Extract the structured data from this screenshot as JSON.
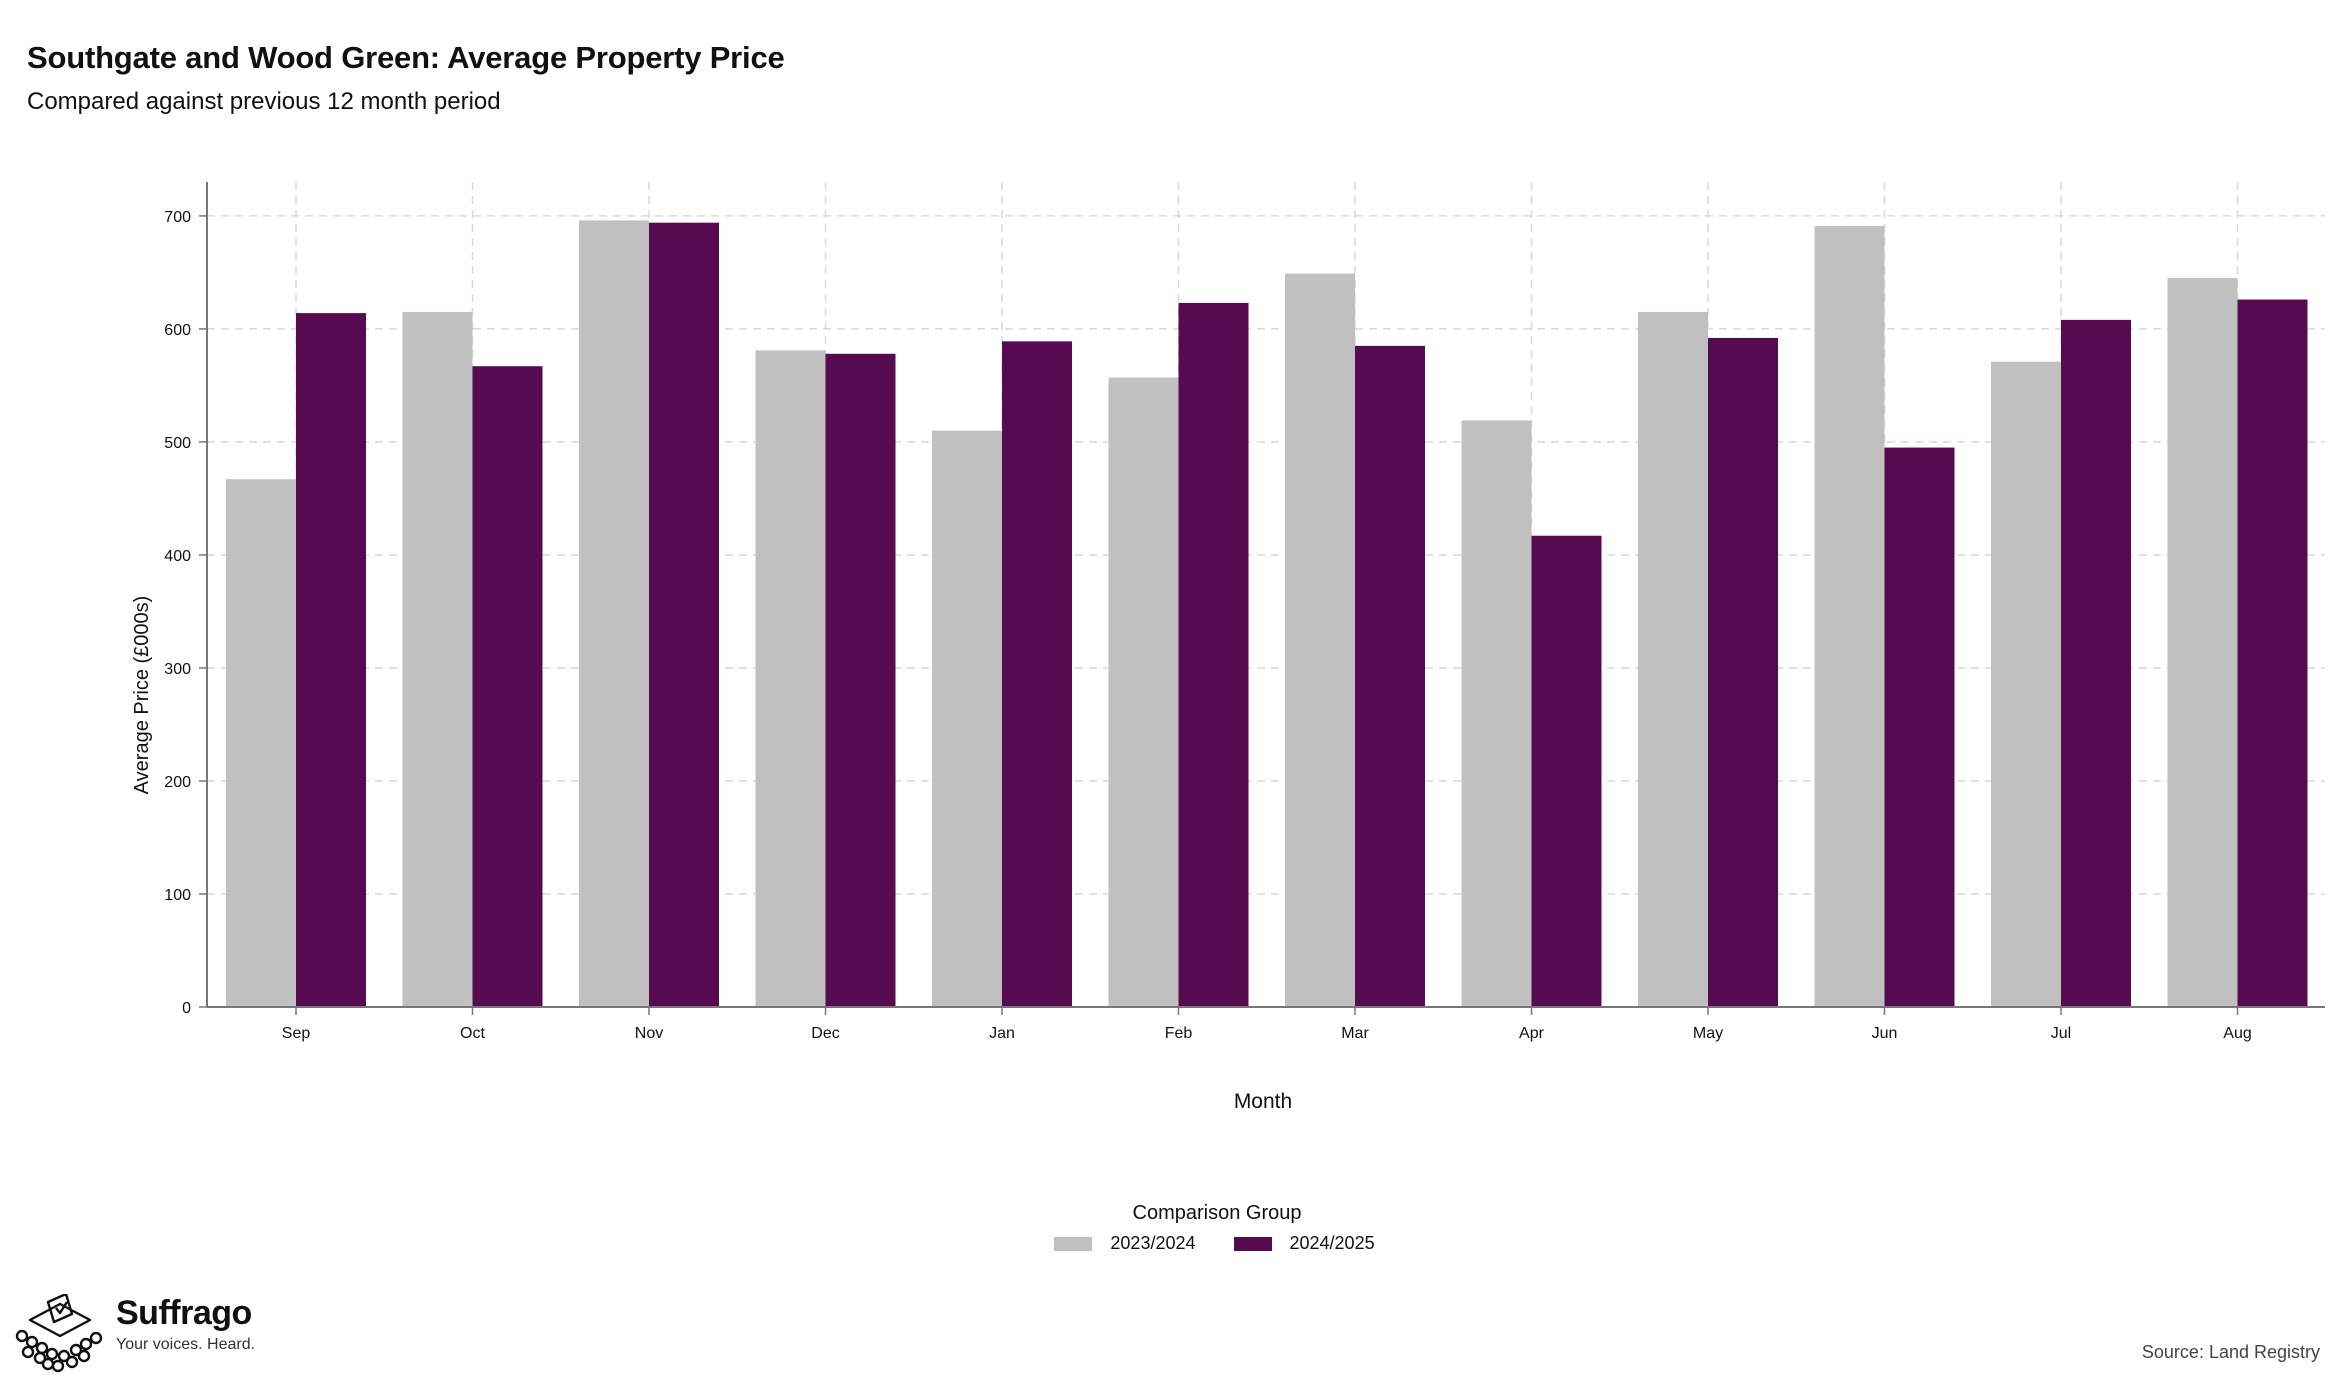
{
  "title": "Southgate and Wood Green: Average Property Price",
  "subtitle": "Compared against previous 12 month period",
  "colors": {
    "series_2023_2024": "#c0c0c0",
    "series_2024_2025": "#560b50",
    "axis": "#777777",
    "grid": "#d9d9d9"
  },
  "chart_data": {
    "type": "bar",
    "categories": [
      "Sep",
      "Oct",
      "Nov",
      "Dec",
      "Jan",
      "Feb",
      "Mar",
      "Apr",
      "May",
      "Jun",
      "Jul",
      "Aug"
    ],
    "series": [
      {
        "name": "2023/2024",
        "values": [
          467,
          615,
          696,
          581,
          510,
          557,
          649,
          519,
          615,
          691,
          571,
          645
        ]
      },
      {
        "name": "2024/2025",
        "values": [
          614,
          567,
          694,
          578,
          589,
          623,
          585,
          417,
          592,
          495,
          608,
          626
        ]
      }
    ],
    "xlabel": "Month",
    "ylabel": "Average Price (£000s)",
    "ylim": [
      0,
      730
    ],
    "yticks": [
      0,
      100,
      200,
      300,
      400,
      500,
      600,
      700
    ],
    "grid": true,
    "legend_title": "Comparison Group",
    "legend_position": "bottom"
  },
  "logo": {
    "name": "Suffrago",
    "tagline": "Your voices. Heard.",
    "icon": "ballot-box-icon"
  },
  "source": "Source: Land Registry"
}
